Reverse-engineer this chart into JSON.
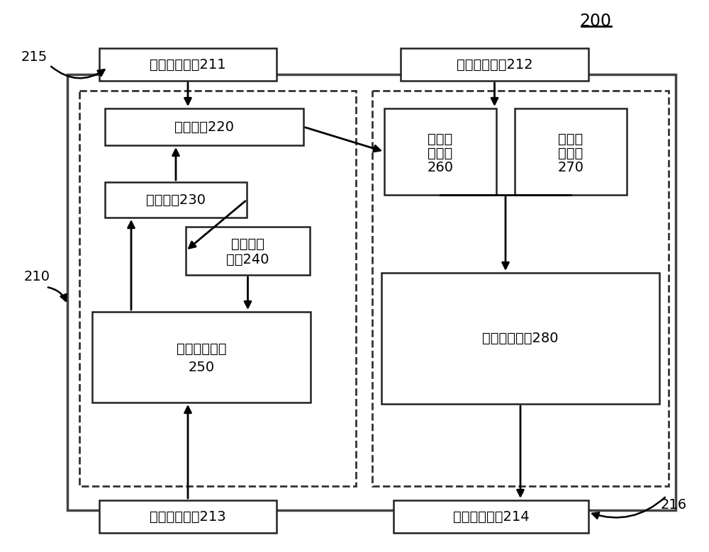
{
  "title_label": "200",
  "bg_color": "#ffffff",
  "text_color": "#000000",
  "label_215": "215",
  "label_216": "216",
  "label_210": "210",
  "fiber_if1_line1": "第一光纤接口211",
  "fiber_if2_line1": "第二光纤接口212",
  "elec_if1_line1": "第一电性接口213",
  "elec_if2_line1": "第二电性接口214",
  "beam_split_label": "分光模块220",
  "light_emit_label": "发光模块230",
  "backlight_line1": "背光探测",
  "backlight_line2": "模块240",
  "power_ctrl_line1": "功率控制模块",
  "power_ctrl_line2": "250",
  "detect1_line1": "第一探",
  "detect1_line2": "测模块",
  "detect1_line3": "260",
  "detect2_line1": "第二探",
  "detect2_line2": "测模块",
  "detect2_line3": "270",
  "signal_ctrl_label": "信号控制模块280",
  "font_size": 14
}
